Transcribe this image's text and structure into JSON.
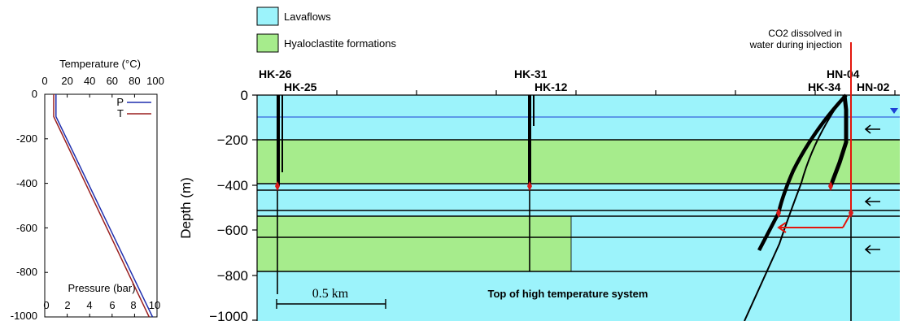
{
  "colors": {
    "lava": "#9cf3fb",
    "hyalo": "#a6ec8c",
    "pressure_line": "#1f2fae",
    "temperature_line": "#9a1f1f",
    "water_table": "#1d3fd6",
    "injection": "#e3160d",
    "marker": "#d81b1b"
  },
  "legend": {
    "lavaflows": "Lavaflows",
    "hyaloclastite": "Hyaloclastite formations"
  },
  "injection_note": {
    "line1": "CO2 dissolved in",
    "line2": "water during injection"
  },
  "left_plot": {
    "top_axis_title": "Temperature (°C)",
    "top_ticks": [
      "0",
      "20",
      "40",
      "60",
      "80",
      "100"
    ],
    "bottom_axis_title": "Pressure (bar)",
    "bottom_ticks": [
      "0",
      "2",
      "4",
      "6",
      "8",
      "10"
    ],
    "y_ticks": [
      "0",
      "-200",
      "-400",
      "-600",
      "-800",
      "-1000"
    ],
    "legend_p": "P",
    "legend_t": "T"
  },
  "main_plot": {
    "y_axis_title": "Depth (m)",
    "y_ticks": [
      "0",
      "−200",
      "−400",
      "−600",
      "−800",
      "−1000"
    ],
    "wells": {
      "hk26": "HK-26",
      "hk25": "HK-25",
      "hk31": "HK-31",
      "hk12": "HK-12",
      "hn04": "HN-04",
      "hk34": "HK-34",
      "hn02": "HN-02"
    },
    "scale_label": "0.5 km",
    "bottom_label": "Top of high temperature system"
  },
  "chart_data": {
    "type": "line",
    "x_label_top": "Temperature (°C)",
    "x_label_bottom": "Pressure (bar)",
    "y_label": "",
    "temperature_range": [
      0,
      100
    ],
    "pressure_range": [
      0,
      10
    ],
    "depth_range": [
      0,
      -1000
    ],
    "series": [
      {
        "name": "P",
        "x_unit": "bar",
        "depth": [
          0,
          -100,
          -1000
        ],
        "values": [
          1,
          1,
          9.6
        ]
      },
      {
        "name": "T",
        "x_unit": "C",
        "depth": [
          0,
          -100,
          -1000
        ],
        "values": [
          8,
          8,
          93
        ]
      }
    ]
  }
}
